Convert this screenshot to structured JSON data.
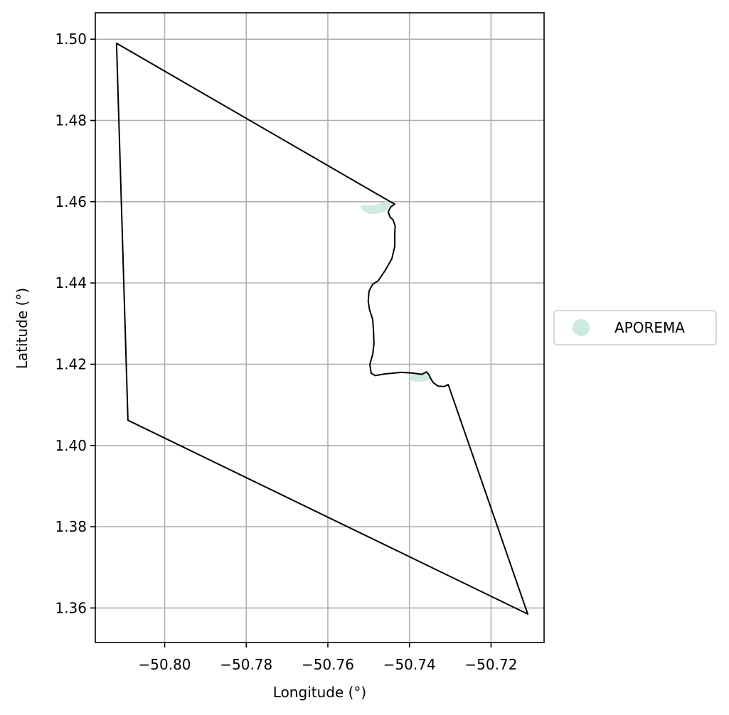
{
  "chart_data": {
    "type": "map",
    "xlabel": "Longitude (°)",
    "ylabel": "Latitude (°)",
    "xlim": [
      -50.817,
      -50.707
    ],
    "ylim": [
      1.3515,
      1.5065
    ],
    "grid": true,
    "xticks": [
      -50.8,
      -50.78,
      -50.76,
      -50.74,
      -50.72
    ],
    "xtick_labels": [
      "−50.80",
      "−50.78",
      "−50.76",
      "−50.74",
      "−50.72"
    ],
    "yticks": [
      1.36,
      1.38,
      1.4,
      1.42,
      1.44,
      1.46,
      1.48,
      1.5
    ],
    "ytick_labels": [
      "1.36",
      "1.38",
      "1.40",
      "1.42",
      "1.44",
      "1.46",
      "1.48",
      "1.50"
    ],
    "legend": {
      "placement": "right",
      "entries": [
        {
          "label": "APOREMA",
          "color": "#cfeade"
        }
      ]
    },
    "boundary": {
      "color": "#000000",
      "coords": [
        [
          -50.8118,
          1.499
        ],
        [
          -50.7447,
          1.46
        ],
        [
          -50.7436,
          1.4594
        ],
        [
          -50.7446,
          1.4587
        ],
        [
          -50.7452,
          1.4575
        ],
        [
          -50.7448,
          1.4563
        ],
        [
          -50.744,
          1.4555
        ],
        [
          -50.7435,
          1.454
        ],
        [
          -50.7436,
          1.452
        ],
        [
          -50.7436,
          1.449
        ],
        [
          -50.7443,
          1.446
        ],
        [
          -50.746,
          1.443
        ],
        [
          -50.7477,
          1.4405
        ],
        [
          -50.749,
          1.4397
        ],
        [
          -50.7499,
          1.438
        ],
        [
          -50.7501,
          1.4355
        ],
        [
          -50.7498,
          1.4335
        ],
        [
          -50.749,
          1.431
        ],
        [
          -50.7488,
          1.428
        ],
        [
          -50.7487,
          1.425
        ],
        [
          -50.749,
          1.4225
        ],
        [
          -50.7497,
          1.42
        ],
        [
          -50.7494,
          1.4178
        ],
        [
          -50.7484,
          1.4172
        ],
        [
          -50.746,
          1.4176
        ],
        [
          -50.742,
          1.418
        ],
        [
          -50.739,
          1.4178
        ],
        [
          -50.737,
          1.4175
        ],
        [
          -50.7358,
          1.4181
        ],
        [
          -50.7352,
          1.4174
        ],
        [
          -50.7348,
          1.4165
        ],
        [
          -50.7342,
          1.4155
        ],
        [
          -50.733,
          1.4146
        ],
        [
          -50.7315,
          1.4145
        ],
        [
          -50.7305,
          1.415
        ],
        [
          -50.711,
          1.3585
        ],
        [
          -50.809,
          1.4062
        ],
        [
          -50.8118,
          1.499
        ]
      ]
    },
    "features": [
      {
        "name": "APOREMA",
        "color": "#cfeade",
        "polygons": [
          [
            [
              -50.752,
              1.459
            ],
            [
              -50.75,
              1.4591
            ],
            [
              -50.7485,
              1.459
            ],
            [
              -50.747,
              1.4596
            ],
            [
              -50.7455,
              1.4601
            ],
            [
              -50.7448,
              1.4596
            ],
            [
              -50.7452,
              1.4585
            ],
            [
              -50.746,
              1.4577
            ],
            [
              -50.7475,
              1.4572
            ],
            [
              -50.7495,
              1.457
            ],
            [
              -50.751,
              1.4575
            ],
            [
              -50.752,
              1.459
            ]
          ],
          [
            [
              -50.74,
              1.417
            ],
            [
              -50.7385,
              1.4178
            ],
            [
              -50.7365,
              1.418
            ],
            [
              -50.7352,
              1.4174
            ],
            [
              -50.735,
              1.4165
            ],
            [
              -50.736,
              1.416
            ],
            [
              -50.7378,
              1.4157
            ],
            [
              -50.7395,
              1.416
            ],
            [
              -50.74,
              1.417
            ]
          ]
        ]
      }
    ]
  }
}
